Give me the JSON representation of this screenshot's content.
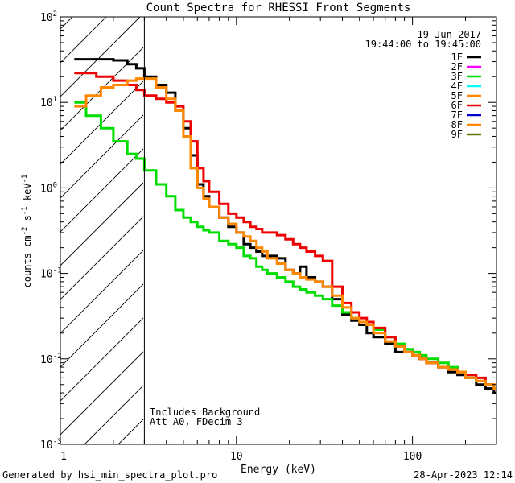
{
  "chart_data": {
    "type": "line",
    "title": "Count Spectra for RHESSI Front Segments",
    "xlabel": "Energy (keV)",
    "ylabel_parts": [
      "counts cm",
      "-2",
      " s",
      "-1",
      " keV",
      "-1"
    ],
    "xscale": "log",
    "yscale": "log",
    "xlim": [
      1.0,
      300
    ],
    "ylim": [
      0.001,
      100
    ],
    "x_ticks": [
      {
        "value": 10,
        "label": "10"
      },
      {
        "value": 100,
        "label": "100"
      }
    ],
    "y_ticks": [
      {
        "value": 100,
        "base": "10",
        "exp": "2"
      },
      {
        "value": 10,
        "base": "10",
        "exp": "1"
      },
      {
        "value": 1,
        "base": "10",
        "exp": "0"
      },
      {
        "value": 0.1,
        "base": "10",
        "exp": "-1"
      },
      {
        "value": 0.01,
        "base": "10",
        "exp": "-2"
      },
      {
        "value": 0.001,
        "base": "10",
        "exp": "-3"
      }
    ],
    "threshold_energy": 3,
    "hatched_region": [
      1.0,
      3
    ],
    "date": "19-Jun-2017",
    "time_range": "19:44:00 to 19:45:00",
    "legend_position": "top-right",
    "annotations": [
      "Includes Background",
      "Att A0, FDecim 3"
    ],
    "series": [
      {
        "name": "1F",
        "color": "#000000",
        "plotted": true,
        "x": [
          1.2,
          1.6,
          2.0,
          2.4,
          2.7,
          3.0,
          3.5,
          4.0,
          4.5,
          5.0,
          5.5,
          6.0,
          6.5,
          7,
          8,
          9,
          10,
          11,
          12,
          13,
          14,
          15,
          17,
          19,
          21,
          23,
          25,
          28,
          31,
          35,
          40,
          45,
          50,
          55,
          60,
          70,
          80,
          90,
          100,
          110,
          120,
          140,
          160,
          180,
          200,
          230,
          260,
          290
        ],
        "y": [
          32,
          32,
          31,
          28,
          25,
          20,
          16,
          13,
          8,
          5,
          2.4,
          1.1,
          0.8,
          0.6,
          0.45,
          0.35,
          0.3,
          0.22,
          0.2,
          0.18,
          0.16,
          0.16,
          0.15,
          0.11,
          0.1,
          0.12,
          0.09,
          0.08,
          0.07,
          0.05,
          0.033,
          0.028,
          0.025,
          0.02,
          0.018,
          0.015,
          0.012,
          0.012,
          0.011,
          0.01,
          0.009,
          0.008,
          0.007,
          0.0065,
          0.006,
          0.005,
          0.0045,
          0.004
        ]
      },
      {
        "name": "2F",
        "color": "#ff00ff",
        "plotted": false,
        "x": [],
        "y": []
      },
      {
        "name": "3F",
        "color": "#00dd00",
        "plotted": true,
        "x": [
          1.2,
          1.4,
          1.7,
          2.0,
          2.4,
          2.7,
          3.0,
          3.5,
          4.0,
          4.5,
          5.0,
          5.5,
          6.0,
          6.5,
          7,
          8,
          9,
          10,
          11,
          12,
          13,
          14,
          15,
          17,
          19,
          21,
          23,
          25,
          28,
          31,
          35,
          40,
          45,
          50,
          55,
          60,
          70,
          80,
          90,
          100,
          110,
          120,
          140,
          160,
          180,
          200,
          230,
          260,
          290
        ],
        "y": [
          10,
          7,
          5,
          3.5,
          2.5,
          2.2,
          1.6,
          1.1,
          0.8,
          0.55,
          0.45,
          0.4,
          0.35,
          0.32,
          0.3,
          0.24,
          0.22,
          0.2,
          0.16,
          0.15,
          0.12,
          0.11,
          0.1,
          0.09,
          0.08,
          0.07,
          0.065,
          0.06,
          0.055,
          0.05,
          0.042,
          0.035,
          0.03,
          0.027,
          0.025,
          0.022,
          0.018,
          0.015,
          0.013,
          0.012,
          0.011,
          0.01,
          0.009,
          0.008,
          0.007,
          0.006,
          0.0055,
          0.005,
          0.0045
        ]
      },
      {
        "name": "4F",
        "color": "#00ffff",
        "plotted": false,
        "x": [],
        "y": []
      },
      {
        "name": "5F",
        "color": "#ff8800",
        "plotted": false,
        "x": [],
        "y": []
      },
      {
        "name": "6F",
        "color": "#ee0000",
        "plotted": true,
        "x": [
          1.2,
          1.6,
          2.0,
          2.4,
          2.7,
          3.0,
          3.5,
          4.0,
          4.5,
          5.0,
          5.5,
          6.0,
          6.5,
          7,
          8,
          9,
          10,
          11,
          12,
          13,
          14,
          15,
          17,
          19,
          21,
          23,
          25,
          28,
          31,
          35,
          40,
          45,
          50,
          55,
          60,
          70,
          80,
          90,
          100,
          110,
          120,
          140,
          160,
          180,
          200,
          230,
          260,
          290
        ],
        "y": [
          22,
          20,
          18,
          16,
          14,
          12,
          11,
          10,
          9,
          6,
          3.5,
          1.7,
          1.2,
          0.9,
          0.65,
          0.5,
          0.45,
          0.4,
          0.35,
          0.33,
          0.3,
          0.3,
          0.28,
          0.25,
          0.22,
          0.2,
          0.18,
          0.16,
          0.14,
          0.07,
          0.045,
          0.035,
          0.03,
          0.027,
          0.023,
          0.018,
          0.014,
          0.012,
          0.011,
          0.01,
          0.009,
          0.008,
          0.0075,
          0.007,
          0.0065,
          0.006,
          0.005,
          0.0045
        ]
      },
      {
        "name": "7F",
        "color": "#0000cc",
        "plotted": false,
        "x": [],
        "y": []
      },
      {
        "name": "8F",
        "color": "#ff8800",
        "plotted": true,
        "x": [
          1.2,
          1.4,
          1.7,
          2.0,
          2.4,
          2.7,
          3.0,
          3.5,
          4.0,
          4.5,
          5.0,
          5.5,
          6.0,
          6.5,
          7,
          8,
          9,
          10,
          11,
          12,
          13,
          14,
          15,
          17,
          19,
          21,
          23,
          25,
          28,
          31,
          35,
          40,
          45,
          50,
          55,
          60,
          70,
          80,
          90,
          100,
          110,
          120,
          140,
          160,
          180,
          200,
          230,
          260,
          290
        ],
        "y": [
          9,
          12,
          15,
          16,
          18,
          19,
          19,
          15,
          11,
          8,
          4,
          1.7,
          1.0,
          0.75,
          0.6,
          0.45,
          0.38,
          0.3,
          0.27,
          0.24,
          0.2,
          0.18,
          0.15,
          0.13,
          0.11,
          0.1,
          0.09,
          0.085,
          0.08,
          0.07,
          0.055,
          0.04,
          0.03,
          0.027,
          0.025,
          0.02,
          0.016,
          0.014,
          0.012,
          0.011,
          0.01,
          0.009,
          0.008,
          0.0075,
          0.007,
          0.006,
          0.0055,
          0.005,
          0.0045
        ]
      },
      {
        "name": "9F",
        "color": "#667700",
        "plotted": false,
        "x": [],
        "y": []
      }
    ]
  },
  "footer": {
    "generated_by": "Generated by hsi_min_spectra_plot.pro",
    "timestamp": "28-Apr-2023 12:14"
  }
}
